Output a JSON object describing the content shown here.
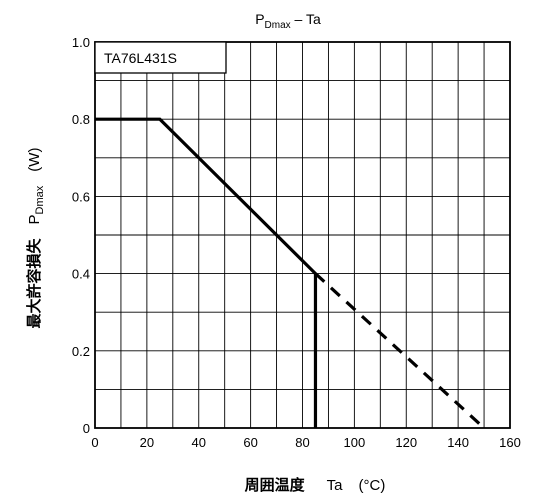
{
  "chart_data": {
    "type": "line",
    "title": {
      "main": "P",
      "sub": "Dmax",
      "suffix": " – Ta"
    },
    "ylabel": {
      "jp": "最大許容損失",
      "main": "P",
      "sub": "Dmax",
      "unit": "(W)"
    },
    "xlabel": {
      "jp": "周囲温度",
      "symbol": "Ta",
      "unit": "(°C)"
    },
    "legend_label": "TA76L431S",
    "xlim": [
      0,
      160
    ],
    "ylim": [
      0,
      1.0
    ],
    "x_ticks": [
      0,
      20,
      40,
      60,
      80,
      100,
      120,
      140,
      160
    ],
    "y_ticks": [
      0,
      0.2,
      0.4,
      0.6,
      0.8,
      1.0
    ],
    "x_tick_labels": [
      "0",
      "20",
      "40",
      "60",
      "80",
      "100",
      "120",
      "140",
      "160"
    ],
    "y_tick_labels": [
      "0",
      "0.2",
      "0.4",
      "0.6",
      "0.8",
      "1.0"
    ],
    "grid": true,
    "series": [
      {
        "style": "solid",
        "points": [
          [
            0,
            0.8
          ],
          [
            25,
            0.8
          ],
          [
            85,
            0.4
          ]
        ]
      },
      {
        "style": "dashed",
        "points": [
          [
            85,
            0.4
          ],
          [
            150,
            0.0
          ]
        ]
      },
      {
        "style": "solid",
        "points": [
          [
            85,
            0.4
          ],
          [
            85,
            0.0
          ]
        ]
      }
    ]
  }
}
